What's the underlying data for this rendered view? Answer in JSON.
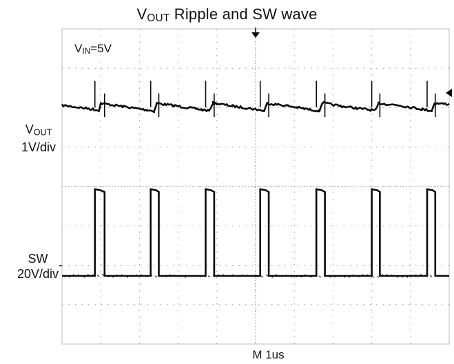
{
  "chart_data": {
    "type": "line",
    "title": {
      "main": "V",
      "sub": "OUT",
      "rest": " Ripple and SW wave"
    },
    "annotation": {
      "main": "V",
      "sub": "IN",
      "rest": "=5V"
    },
    "timebase": "M 1us",
    "grid": true,
    "divisions": {
      "x": 10,
      "y": 8
    },
    "series": [
      {
        "name": {
          "main": "V",
          "sub": "OUT"
        },
        "scale": "1V/div",
        "unit": "div",
        "ripple_min": -0.15,
        "ripple_max": 0.1,
        "x_period_div": 1.43,
        "values": [
          [
            0.0,
            0.0
          ],
          [
            0.8,
            -0.1
          ],
          [
            0.95,
            -0.13
          ],
          [
            1.0,
            0.05
          ],
          [
            1.5,
            -0.02
          ],
          [
            2.2,
            -0.12
          ],
          [
            2.38,
            -0.15
          ],
          [
            2.45,
            0.05
          ],
          [
            2.9,
            -0.01
          ],
          [
            3.6,
            -0.11
          ],
          [
            3.8,
            -0.14
          ],
          [
            3.9,
            0.06
          ],
          [
            4.4,
            -0.02
          ],
          [
            5.0,
            -0.1
          ],
          [
            5.22,
            -0.14
          ],
          [
            5.3,
            0.05
          ],
          [
            5.8,
            -0.01
          ],
          [
            6.4,
            -0.11
          ],
          [
            6.65,
            -0.14
          ],
          [
            6.72,
            0.06
          ],
          [
            7.2,
            -0.02
          ],
          [
            7.9,
            -0.11
          ],
          [
            8.1,
            -0.13
          ],
          [
            8.18,
            0.05
          ],
          [
            8.7,
            0.0
          ],
          [
            9.3,
            -0.1
          ],
          [
            9.55,
            -0.14
          ],
          [
            9.62,
            0.05
          ],
          [
            10.0,
            0.03
          ]
        ]
      },
      {
        "name": "SW",
        "scale": "20V/div",
        "unit": "div",
        "low": 0.0,
        "high": 2.2,
        "x_rising_div": [
          0.85,
          2.29,
          3.71,
          5.12,
          6.57,
          8.0,
          9.43
        ],
        "x_falling_div": [
          1.1,
          2.5,
          3.93,
          5.34,
          6.79,
          8.21,
          9.64
        ]
      }
    ]
  },
  "labels": {
    "vout_scale": "1V/div",
    "sw_name": "SW",
    "sw_scale": "20V/div"
  },
  "colors": {
    "trace": "#0a0a0a",
    "grid": "#9a9a9a",
    "frame": "#bdbdbd"
  }
}
